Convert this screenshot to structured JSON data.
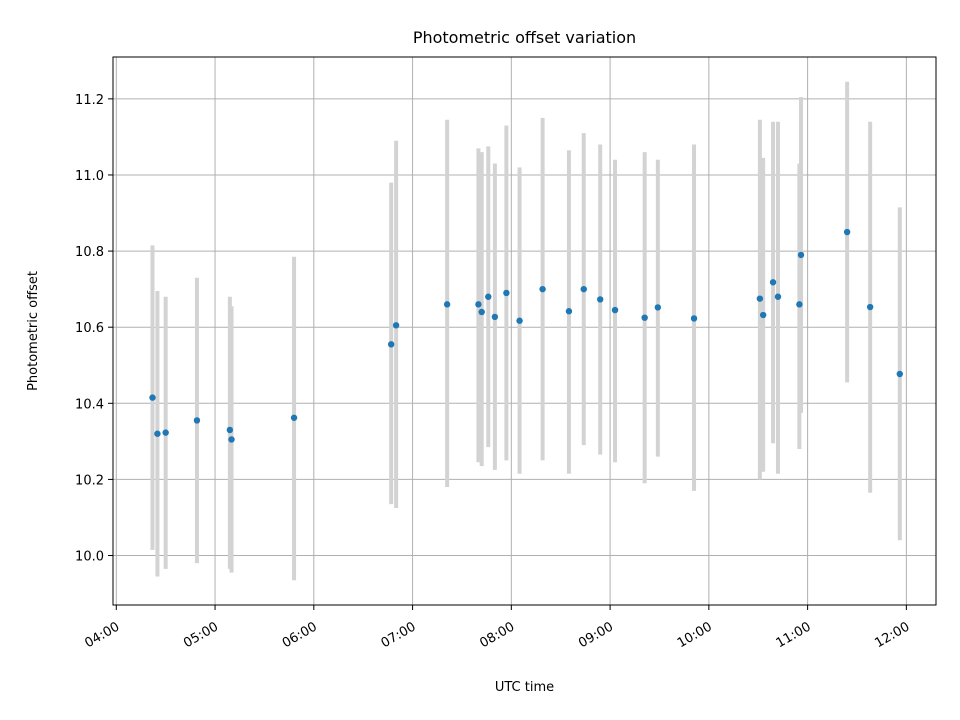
{
  "chart_data": {
    "type": "scatter",
    "title": "Photometric offset variation",
    "xlabel": "UTC time",
    "ylabel": "Photometric offset",
    "x_unit": "UTC time (HH:MM)",
    "xlim": [
      "03:58",
      "12:18"
    ],
    "ylim": [
      9.87,
      11.31
    ],
    "x_ticks": [
      "04:00",
      "05:00",
      "06:00",
      "07:00",
      "08:00",
      "09:00",
      "10:00",
      "11:00",
      "12:00"
    ],
    "y_ticks": [
      "10.0",
      "10.2",
      "10.4",
      "10.6",
      "10.8",
      "11.0",
      "11.2"
    ],
    "grid": true,
    "marker_color": "#1f77b4",
    "errorbar_color": "#d3d3d3",
    "points": [
      {
        "x": "04:22",
        "y": 10.415,
        "ylow": 10.015,
        "yhigh": 10.815
      },
      {
        "x": "04:25",
        "y": 10.32,
        "ylow": 9.945,
        "yhigh": 10.695
      },
      {
        "x": "04:30",
        "y": 10.323,
        "ylow": 9.965,
        "yhigh": 10.68
      },
      {
        "x": "04:49",
        "y": 10.355,
        "ylow": 9.98,
        "yhigh": 10.73
      },
      {
        "x": "05:09",
        "y": 10.33,
        "ylow": 9.965,
        "yhigh": 10.68
      },
      {
        "x": "05:10",
        "y": 10.305,
        "ylow": 9.955,
        "yhigh": 10.655
      },
      {
        "x": "05:48",
        "y": 10.362,
        "ylow": 9.935,
        "yhigh": 10.785
      },
      {
        "x": "06:47",
        "y": 10.555,
        "ylow": 10.135,
        "yhigh": 10.98
      },
      {
        "x": "06:50",
        "y": 10.605,
        "ylow": 10.125,
        "yhigh": 11.09
      },
      {
        "x": "07:21",
        "y": 10.66,
        "ylow": 10.18,
        "yhigh": 11.145
      },
      {
        "x": "07:40",
        "y": 10.66,
        "ylow": 10.245,
        "yhigh": 11.07
      },
      {
        "x": "07:42",
        "y": 10.64,
        "ylow": 10.235,
        "yhigh": 11.06
      },
      {
        "x": "07:46",
        "y": 10.68,
        "ylow": 10.285,
        "yhigh": 11.075
      },
      {
        "x": "07:50",
        "y": 10.627,
        "ylow": 10.225,
        "yhigh": 11.03
      },
      {
        "x": "07:57",
        "y": 10.69,
        "ylow": 10.25,
        "yhigh": 11.13
      },
      {
        "x": "08:05",
        "y": 10.617,
        "ylow": 10.215,
        "yhigh": 11.02
      },
      {
        "x": "08:19",
        "y": 10.7,
        "ylow": 10.25,
        "yhigh": 11.15
      },
      {
        "x": "08:35",
        "y": 10.642,
        "ylow": 10.215,
        "yhigh": 11.065
      },
      {
        "x": "08:44",
        "y": 10.7,
        "ylow": 10.29,
        "yhigh": 11.11
      },
      {
        "x": "08:54",
        "y": 10.673,
        "ylow": 10.265,
        "yhigh": 11.08
      },
      {
        "x": "09:03",
        "y": 10.645,
        "ylow": 10.245,
        "yhigh": 11.04
      },
      {
        "x": "09:21",
        "y": 10.625,
        "ylow": 10.19,
        "yhigh": 11.06
      },
      {
        "x": "09:29",
        "y": 10.652,
        "ylow": 10.26,
        "yhigh": 11.04
      },
      {
        "x": "09:51",
        "y": 10.623,
        "ylow": 10.17,
        "yhigh": 11.08
      },
      {
        "x": "10:31",
        "y": 10.675,
        "ylow": 10.2,
        "yhigh": 11.145
      },
      {
        "x": "10:33",
        "y": 10.632,
        "ylow": 10.22,
        "yhigh": 11.045
      },
      {
        "x": "10:39",
        "y": 10.718,
        "ylow": 10.295,
        "yhigh": 11.14
      },
      {
        "x": "10:42",
        "y": 10.68,
        "ylow": 10.215,
        "yhigh": 11.14
      },
      {
        "x": "10:55",
        "y": 10.66,
        "ylow": 10.28,
        "yhigh": 11.03
      },
      {
        "x": "10:56",
        "y": 10.79,
        "ylow": 10.375,
        "yhigh": 11.205
      },
      {
        "x": "11:24",
        "y": 10.85,
        "ylow": 10.455,
        "yhigh": 11.245
      },
      {
        "x": "11:38",
        "y": 10.653,
        "ylow": 10.165,
        "yhigh": 11.14
      },
      {
        "x": "11:56",
        "y": 10.477,
        "ylow": 10.04,
        "yhigh": 10.915
      }
    ]
  }
}
